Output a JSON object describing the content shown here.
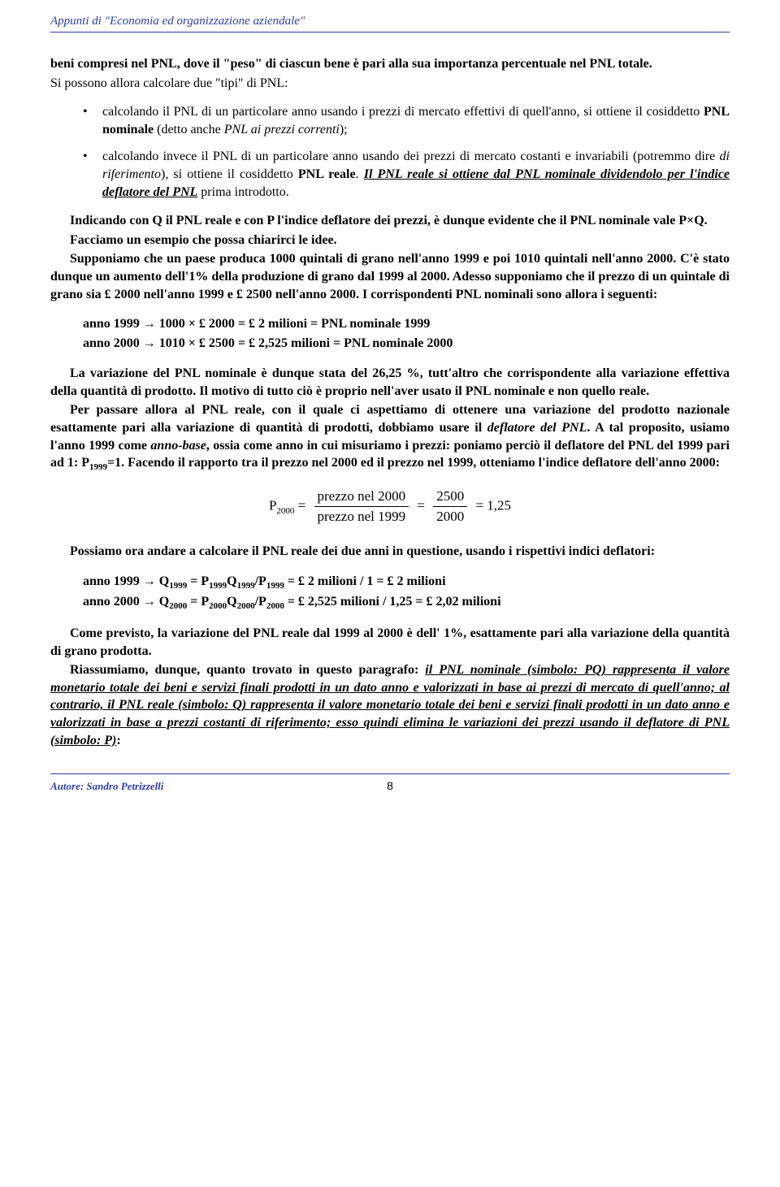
{
  "header": {
    "title": "Appunti di \"Economia ed organizzazione aziendale\""
  },
  "intro": {
    "bold_part": "beni compresi nel PNL, dove il \"peso\" di ciascun bene è pari alla sua importanza percentuale nel PNL totale.",
    "followup": "Si possono allora calcolare due \"tipi\" di PNL:"
  },
  "bullets": {
    "b1_pre": "calcolando il PNL di un particolare anno usando i prezzi di mercato effettivi di quell'anno, si ottiene il cosiddetto ",
    "b1_term": "PNL nominale",
    "b1_post1": " (detto anche ",
    "b1_italic": "PNL ai prezzi correnti",
    "b1_post2": ");",
    "b2_pre": "calcolando invece il PNL di un particolare anno usando dei prezzi di mercato costanti e invariabili (potremmo dire ",
    "b2_italic1": "di riferimento",
    "b2_mid": "), si ottiene il cosiddetto ",
    "b2_term": "PNL reale",
    "b2_post1": ". ",
    "b2_underline": "Il PNL reale si ottiene dal PNL nominale dividendolo per l'indice deflatore del PNL",
    "b2_post2": " prima introdotto."
  },
  "p_qp": {
    "t1": "Indicando con Q il PNL reale e con P l'indice deflatore dei prezzi, è dunque evidente che il PNL nominale vale P×Q.",
    "t2": "Facciamo un esempio che possa chiarirci le idee.",
    "t3": "Supponiamo che un paese produca 1000 quintali di grano nell'anno 1999 e poi 1010 quintali nell'anno 2000. C'è stato dunque un aumento dell'1% della produzione di grano dal 1999 al 2000. Adesso supponiamo che il prezzo di un quintale di grano sia £ 2000 nell'anno 1999 e £ 2500 nell'anno 2000. I corrispondenti PNL nominali sono allora i seguenti:"
  },
  "calc1": {
    "l1": "anno 1999 → 1000 × £ 2000 = £ 2 milioni = PNL nominale 1999",
    "l2": "anno 2000 → 1010 × £ 2500 = £ 2,525 milioni = PNL nominale 2000"
  },
  "p_var": {
    "t1": "La variazione del PNL nominale è dunque stata del 26,25 %, tutt'altro che corrispondente alla variazione effettiva della quantità di prodotto. Il motivo di tutto ciò è proprio nell'aver usato il PNL nominale e non quello reale.",
    "t2_a": "Per passare allora al PNL reale, con il quale ci aspettiamo di ottenere una variazione del prodotto nazionale esattamente pari alla variazione di quantità di prodotti, dobbiamo usare il ",
    "t2_italic": "deflatore del PNL",
    "t2_b": ". A tal proposito, usiamo l'anno 1999 come ",
    "t2_italic2": "anno-base",
    "t2_c": ", ossia come anno in cui misuriamo i prezzi: poniamo perciò il deflatore del PNL del 1999 pari ad 1: P",
    "t2_sub": "1999",
    "t2_d": "=1. Facendo il rapporto tra il prezzo nel 2000 ed il prezzo nel 1999, otteniamo l'indice deflatore dell'anno 2000:"
  },
  "formula": {
    "lhs": "P",
    "lhs_sub": "2000",
    "eq": " = ",
    "num1": "prezzo nel 2000",
    "den1": "prezzo nel 1999",
    "eq2": " = ",
    "num2": "2500",
    "den2": "2000",
    "eq3": " = 1,25"
  },
  "p_calc2_intro": "Possiamo ora andare a calcolare il PNL reale dei due anni in questione, usando i rispettivi indici deflatori:",
  "calc2": {
    "l1_a": "anno 1999 → Q",
    "l1_s1": "1999",
    "l1_b": " = P",
    "l1_s2": "1999",
    "l1_c": "Q",
    "l1_s3": "1999",
    "l1_d": "/P",
    "l1_s4": "1999",
    "l1_e": " = £ 2 milioni / 1 = £ 2 milioni",
    "l2_a": "anno 2000 → Q",
    "l2_s1": "2000",
    "l2_b": " = P",
    "l2_s2": "2000",
    "l2_c": "Q",
    "l2_s3": "2000",
    "l2_d": "/P",
    "l2_s4": "2000",
    "l2_e": " = £ 2,525 milioni / 1,25 = £ 2,02 milioni"
  },
  "p_conclusion": "Come previsto, la variazione del PNL reale dal 1999 al 2000 è dell' 1%, esattamente pari alla variazione della quantità di grano prodotta.",
  "summary": {
    "pre": "Riassumiamo, dunque, quanto trovato in questo paragrafo: ",
    "u1": "il PNL nominale (simbolo: PQ) rappresenta il valore monetario totale dei beni e servizi finali prodotti in un dato anno e valorizzati in base ai prezzi di mercato di quell'anno; al contrario, il PNL reale (simbolo: Q) rappresenta il valore monetario totale dei beni e servizi finali prodotti in un dato anno e valorizzati in base a prezzi costanti di riferimento; esso quindi elimina le variazioni dei prezzi usando il deflatore di PNL (simbolo: P)",
    "post": ":"
  },
  "footer": {
    "author_label": "Autore: Sandro Petrizzelli",
    "page": "8"
  }
}
